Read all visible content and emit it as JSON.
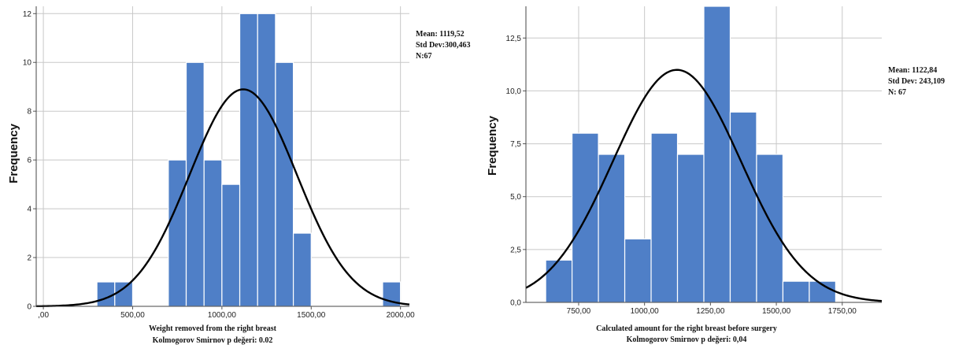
{
  "chart_data": [
    {
      "type": "bar",
      "subtype": "histogram-with-normal-curve",
      "ylabel": "Frequency",
      "caption_line1": "Weight removed from the right breast",
      "caption_line2": "Kolmogorov Smirnov p değeri: 0.02",
      "xlim": [
        -40,
        2050
      ],
      "ylim": [
        0,
        12.3
      ],
      "x_ticks": [
        0,
        500,
        1000,
        1500,
        2000
      ],
      "x_tick_labels": [
        ",00",
        "500,00",
        "1000,00",
        "1500,00",
        "2000,00"
      ],
      "y_ticks": [
        0,
        2,
        4,
        6,
        8,
        10,
        12
      ],
      "y_tick_labels": [
        "0",
        "2",
        "4",
        "6",
        "8",
        "10",
        "12"
      ],
      "grid": true,
      "bin_width": 100,
      "bins": [
        {
          "start": 300,
          "end": 400,
          "count": 1
        },
        {
          "start": 400,
          "end": 500,
          "count": 1
        },
        {
          "start": 700,
          "end": 800,
          "count": 6
        },
        {
          "start": 800,
          "end": 900,
          "count": 10
        },
        {
          "start": 900,
          "end": 1000,
          "count": 6
        },
        {
          "start": 1000,
          "end": 1100,
          "count": 5
        },
        {
          "start": 1100,
          "end": 1200,
          "count": 12
        },
        {
          "start": 1200,
          "end": 1300,
          "count": 12
        },
        {
          "start": 1300,
          "end": 1400,
          "count": 10
        },
        {
          "start": 1400,
          "end": 1500,
          "count": 3
        },
        {
          "start": 1900,
          "end": 2000,
          "count": 1
        }
      ],
      "mean": 1119.52,
      "std": 300.463,
      "n": 67,
      "stats_text": [
        "Mean: 1119,52",
        "Std Dev:300,463",
        "N:67"
      ],
      "bar_color": "#4f7fc7",
      "curve_color": "#000000"
    },
    {
      "type": "bar",
      "subtype": "histogram-with-normal-curve",
      "ylabel": "Frequency",
      "caption_line1": "Calculated amount for the right breast before surgery",
      "caption_line2": "Kolmogorov Smirnov p değeri: 0,04",
      "xlim": [
        550,
        1900
      ],
      "ylim": [
        0,
        14
      ],
      "x_ticks": [
        750,
        1000,
        1250,
        1500,
        1750
      ],
      "x_tick_labels": [
        "750,00",
        "1000,00",
        "1250,00",
        "1500,00",
        "1750,00"
      ],
      "y_ticks": [
        0,
        2.5,
        5,
        7.5,
        10,
        12.5
      ],
      "y_tick_labels": [
        "0,0",
        "2,5",
        "5,0",
        "7,5",
        "10,0",
        "12,5"
      ],
      "grid": true,
      "bin_width": 100,
      "bins": [
        {
          "start": 625,
          "end": 725,
          "count": 2
        },
        {
          "start": 725,
          "end": 825,
          "count": 8
        },
        {
          "start": 825,
          "end": 925,
          "count": 7
        },
        {
          "start": 925,
          "end": 1025,
          "count": 3
        },
        {
          "start": 1025,
          "end": 1125,
          "count": 8
        },
        {
          "start": 1125,
          "end": 1225,
          "count": 7
        },
        {
          "start": 1225,
          "end": 1325,
          "count": 14
        },
        {
          "start": 1325,
          "end": 1425,
          "count": 9
        },
        {
          "start": 1425,
          "end": 1525,
          "count": 7
        },
        {
          "start": 1525,
          "end": 1625,
          "count": 1
        },
        {
          "start": 1625,
          "end": 1725,
          "count": 1
        }
      ],
      "mean": 1122.84,
      "std": 243.109,
      "n": 67,
      "stats_text": [
        "Mean: 1122,84",
        "Std Dev: 243,109",
        "N: 67"
      ],
      "bar_color": "#4f7fc7",
      "curve_color": "#000000"
    }
  ]
}
